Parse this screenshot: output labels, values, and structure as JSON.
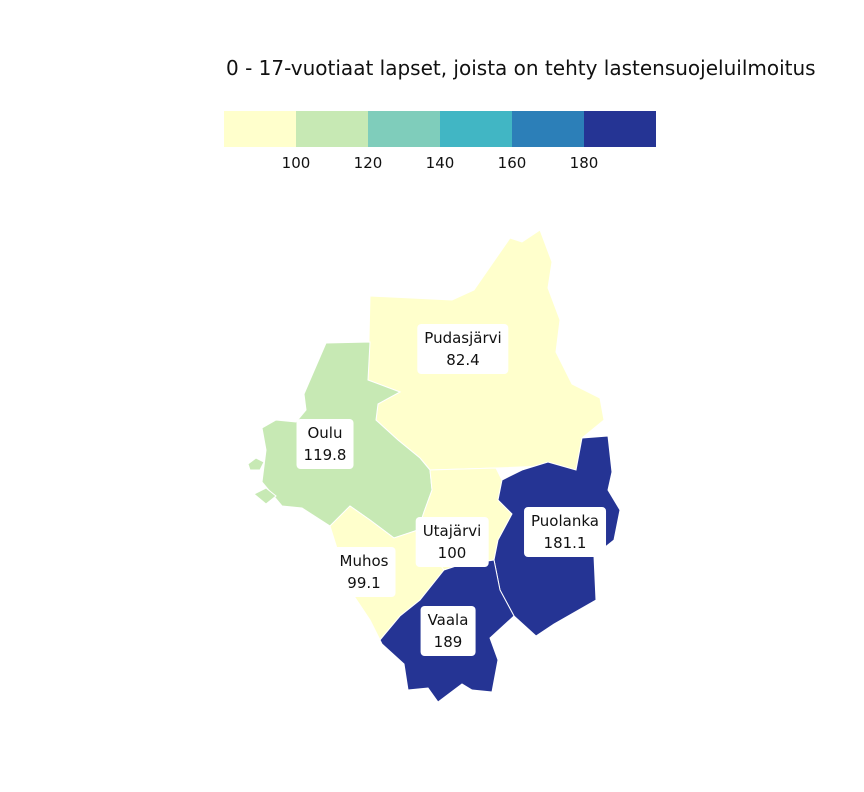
{
  "title": "0 - 17-vuotiaat lapset, joista on tehty lastensuojeluilmoitus",
  "legend": {
    "colors": [
      "#ffffcc",
      "#c7e9b4",
      "#7fcdbb",
      "#41b6c4",
      "#2c7fb8",
      "#253494"
    ],
    "breaks": [
      "100",
      "120",
      "140",
      "160",
      "180"
    ]
  },
  "regions": [
    {
      "name": "Pudasjärvi",
      "value": "82.4",
      "color": "#ffffcc"
    },
    {
      "name": "Oulu",
      "value": "119.8",
      "color": "#c7e9b4"
    },
    {
      "name": "Muhos",
      "value": "99.1",
      "color": "#ffffcc"
    },
    {
      "name": "Utajärvi",
      "value": "100",
      "color": "#ffffcc"
    },
    {
      "name": "Puolanka",
      "value": "181.1",
      "color": "#253494"
    },
    {
      "name": "Vaala",
      "value": "189",
      "color": "#253494"
    }
  ]
}
